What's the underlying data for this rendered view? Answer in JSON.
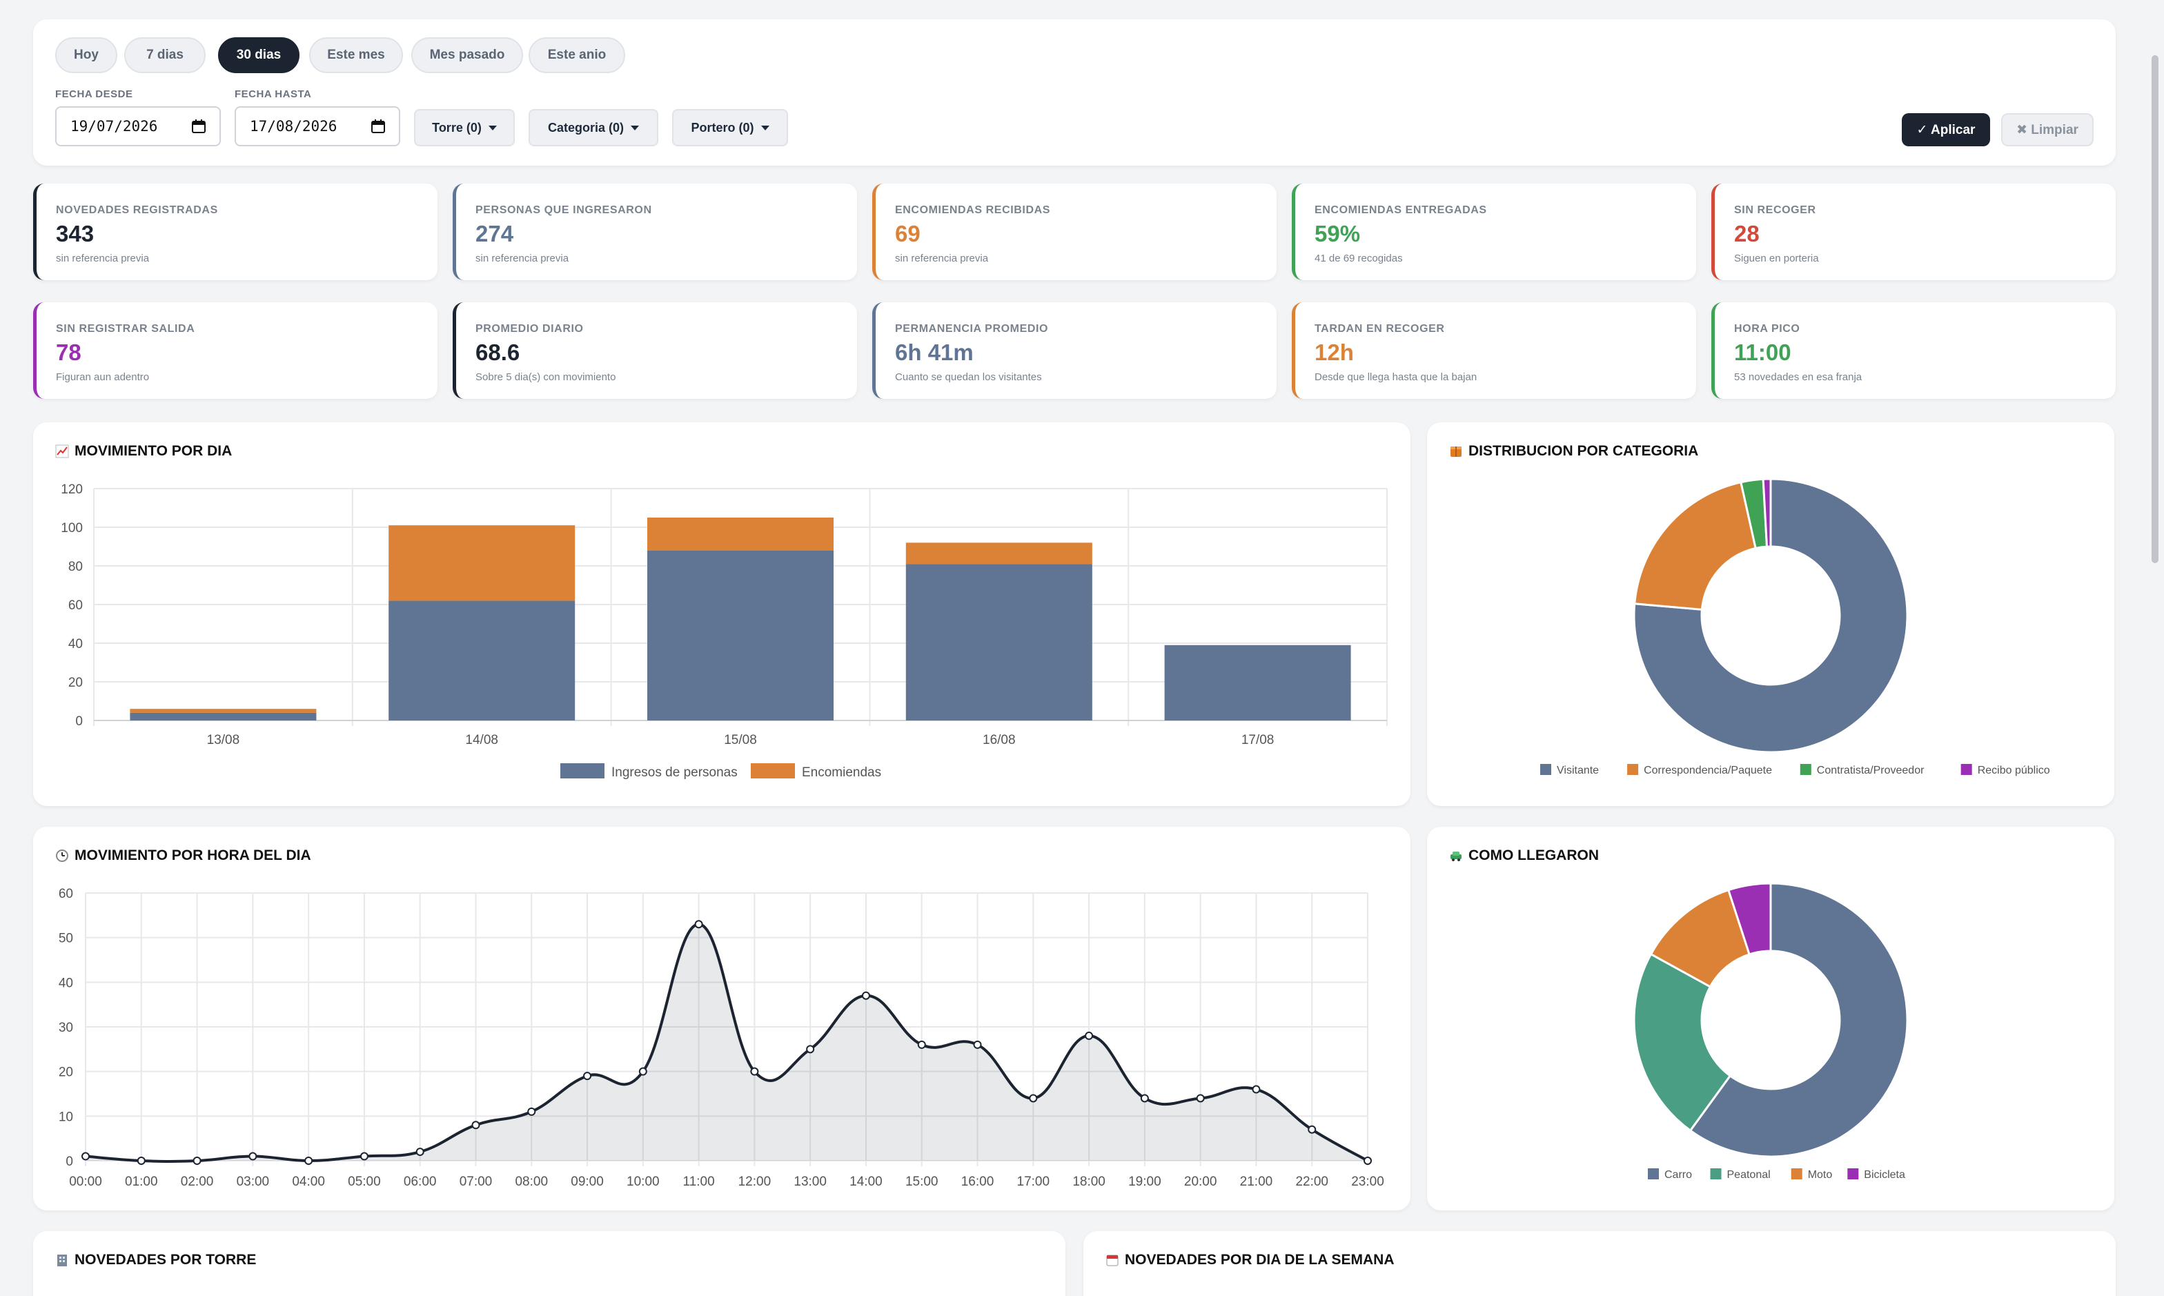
{
  "filters": {
    "quick": [
      "Hoy",
      "7 dias",
      "30 dias",
      "Este mes",
      "Mes pasado",
      "Este anio"
    ],
    "active_quick": "30 dias",
    "date_from_label": "FECHA DESDE",
    "date_from": "19/07/2026",
    "date_to_label": "FECHA HASTA",
    "date_to": "17/08/2026",
    "dropdowns": [
      "Torre (0)",
      "Categoria (0)",
      "Portero (0)"
    ],
    "apply": "✓ Aplicar",
    "clear": "✖ Limpiar"
  },
  "kpis": [
    {
      "label": "NOVEDADES REGISTRADAS",
      "value": "343",
      "sub": "sin referencia previa",
      "color": "#1b2430"
    },
    {
      "label": "PERSONAS QUE INGRESARON",
      "value": "274",
      "sub": "sin referencia previa",
      "color": "#5f7593"
    },
    {
      "label": "ENCOMIENDAS RECIBIDAS",
      "value": "69",
      "sub": "sin referencia previa",
      "color": "#dc8237"
    },
    {
      "label": "ENCOMIENDAS ENTREGADAS",
      "value": "59%",
      "sub": "41 de 69 recogidas",
      "color": "#3fa255"
    },
    {
      "label": "SIN RECOGER",
      "value": "28",
      "sub": "Siguen en porteria",
      "color": "#d24a3a"
    },
    {
      "label": "SIN REGISTRAR SALIDA",
      "value": "78",
      "sub": "Figuran aun adentro",
      "color": "#9b2fb3"
    },
    {
      "label": "PROMEDIO DIARIO",
      "value": "68.6",
      "sub": "Sobre 5 dia(s) con movimiento",
      "color": "#1b2430"
    },
    {
      "label": "PERMANENCIA PROMEDIO",
      "value": "6h 41m",
      "sub": "Cuanto se quedan los visitantes",
      "color": "#5f7593"
    },
    {
      "label": "TARDAN EN RECOGER",
      "value": "12h",
      "sub": "Desde que llega hasta que la bajan",
      "color": "#dc8237"
    },
    {
      "label": "HORA PICO",
      "value": "11:00",
      "sub": "53 novedades en esa franja",
      "color": "#3fa255"
    }
  ],
  "sections": {
    "daily": "MOVIMIENTO POR DIA",
    "category": "DISTRIBUCION POR CATEGORIA",
    "hourly": "MOVIMIENTO POR HORA DEL DIA",
    "arrival": "COMO LLEGARON",
    "tower": "NOVEDADES POR TORRE",
    "weekday": "NOVEDADES POR DIA DE LA SEMANA"
  },
  "icons": {
    "daily": "chart-increasing-icon",
    "category": "package-icon",
    "hourly": "clock-icon",
    "arrival": "car-icon",
    "tower": "building-icon",
    "weekday": "calendar-icon"
  },
  "chart_data": [
    {
      "type": "bar",
      "stacked": true,
      "title": "MOVIMIENTO POR DIA",
      "categories": [
        "13/08",
        "14/08",
        "15/08",
        "16/08",
        "17/08"
      ],
      "series": [
        {
          "name": "Ingresos de personas",
          "values": [
            4,
            62,
            88,
            81,
            39
          ],
          "color": "#5f7593"
        },
        {
          "name": "Encomiendas",
          "values": [
            2,
            39,
            17,
            11,
            0
          ],
          "color": "#dc8237"
        }
      ],
      "ylim": [
        0,
        120
      ],
      "yticks": [
        0,
        20,
        40,
        60,
        80,
        100,
        120
      ],
      "legend": "bottom",
      "grid": true
    },
    {
      "type": "pie",
      "donut": true,
      "title": "DISTRIBUCION POR CATEGORIA",
      "labels": [
        "Visitante",
        "Correspondencia/Paquete",
        "Contratista/Proveedor",
        "Recibo público"
      ],
      "values": [
        262,
        69,
        9,
        3
      ],
      "colors": [
        "#5f7593",
        "#dc8237",
        "#3fa255",
        "#9b2fb3"
      ],
      "legend": "bottom"
    },
    {
      "type": "area",
      "title": "MOVIMIENTO POR HORA DEL DIA",
      "categories": [
        "00:00",
        "01:00",
        "02:00",
        "03:00",
        "04:00",
        "05:00",
        "06:00",
        "07:00",
        "08:00",
        "09:00",
        "10:00",
        "11:00",
        "12:00",
        "13:00",
        "14:00",
        "15:00",
        "16:00",
        "17:00",
        "18:00",
        "19:00",
        "20:00",
        "21:00",
        "22:00",
        "23:00"
      ],
      "values": [
        1,
        0,
        0,
        1,
        0,
        1,
        2,
        8,
        11,
        19,
        20,
        53,
        20,
        25,
        37,
        26,
        26,
        14,
        28,
        14,
        14,
        16,
        7,
        0
      ],
      "ylim": [
        0,
        60
      ],
      "yticks": [
        0,
        10,
        20,
        30,
        40,
        50,
        60
      ],
      "grid": true
    },
    {
      "type": "pie",
      "donut": true,
      "title": "COMO LLEGARON",
      "labels": [
        "Carro",
        "Peatonal",
        "Moto",
        "Bicicleta"
      ],
      "values": [
        60,
        23,
        12,
        5
      ],
      "colors": [
        "#5f7593",
        "#4a9e84",
        "#dc8237",
        "#9b2fb3"
      ],
      "legend": "bottom"
    }
  ]
}
